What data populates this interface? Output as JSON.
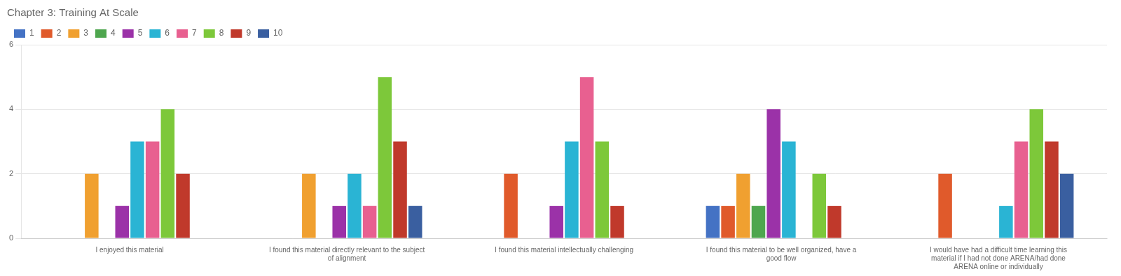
{
  "chart_data": {
    "type": "bar",
    "title": "Chapter 3: Training At Scale",
    "categories": [
      "I enjoyed this material",
      "I found this material directly relevant to the subject\nof alignment",
      "I found this material intellectually challenging",
      "I found this material to be well organized, have a\ngood flow",
      "I would have had a difficult time learning this\nmaterial if I had not done ARENA/had done\nARENA online or individually"
    ],
    "series": [
      {
        "name": "1",
        "color": "#4472c4",
        "values": [
          0,
          0,
          0,
          1,
          0
        ]
      },
      {
        "name": "2",
        "color": "#e05a2b",
        "values": [
          0,
          0,
          2,
          1,
          2
        ]
      },
      {
        "name": "3",
        "color": "#f0a030",
        "values": [
          2,
          2,
          0,
          2,
          0
        ]
      },
      {
        "name": "4",
        "color": "#4ea64e",
        "values": [
          0,
          0,
          0,
          1,
          0
        ]
      },
      {
        "name": "5",
        "color": "#9b32a8",
        "values": [
          1,
          1,
          1,
          4,
          0
        ]
      },
      {
        "name": "6",
        "color": "#2ab4d4",
        "values": [
          3,
          2,
          3,
          3,
          1
        ]
      },
      {
        "name": "7",
        "color": "#e86090",
        "values": [
          3,
          1,
          5,
          0,
          3
        ]
      },
      {
        "name": "8",
        "color": "#7dc83a",
        "values": [
          4,
          5,
          3,
          2,
          4
        ]
      },
      {
        "name": "9",
        "color": "#c0392b",
        "values": [
          2,
          3,
          1,
          1,
          3
        ]
      },
      {
        "name": "10",
        "color": "#3a5fa0",
        "values": [
          0,
          1,
          0,
          0,
          2
        ]
      }
    ],
    "ylim": [
      0,
      6
    ],
    "yticks": [
      0,
      2,
      4,
      6
    ],
    "grid": true,
    "legend": "upper left"
  }
}
